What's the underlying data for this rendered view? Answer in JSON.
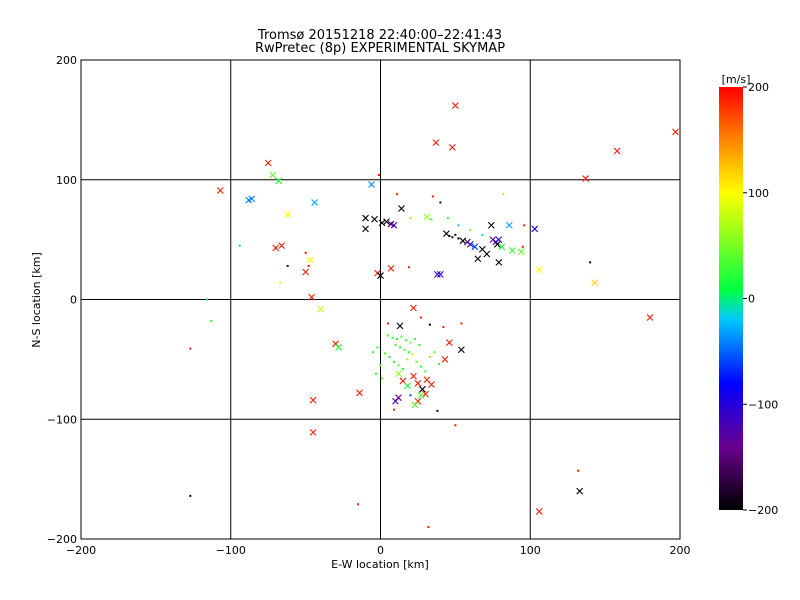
{
  "chart_data": {
    "type": "scatter",
    "title": "Tromsø 20151218 22:40:00–22:41:43",
    "subtitle": "RwPretec (8p) EXPERIMENTAL SKYMAP",
    "xlabel": "E-W location [km]",
    "ylabel": "N-S location [km]",
    "xlim": [
      -200,
      200
    ],
    "ylim": [
      -200,
      200
    ],
    "x_ticks": [
      -200,
      -100,
      0,
      100,
      200
    ],
    "y_ticks": [
      -200,
      -100,
      0,
      100,
      200
    ],
    "grid": true,
    "colorbar": {
      "label": "[m/s]",
      "range": [
        -200,
        200
      ],
      "ticks": [
        200,
        100,
        0,
        -100,
        -200
      ]
    },
    "points": [
      {
        "x": 50,
        "y": 162,
        "v": 190,
        "marker": "x"
      },
      {
        "x": 197,
        "y": 140,
        "v": 190,
        "marker": "x"
      },
      {
        "x": 37,
        "y": 131,
        "v": 190,
        "marker": "x"
      },
      {
        "x": 48,
        "y": 127,
        "v": 190,
        "marker": "x"
      },
      {
        "x": 158,
        "y": 124,
        "v": 190,
        "marker": "x"
      },
      {
        "x": -75,
        "y": 114,
        "v": 190,
        "marker": "x"
      },
      {
        "x": -72,
        "y": 104,
        "v": 40,
        "marker": "x"
      },
      {
        "x": -68,
        "y": 99,
        "v": 20,
        "marker": "x"
      },
      {
        "x": 137,
        "y": 101,
        "v": 190,
        "marker": "x"
      },
      {
        "x": -107,
        "y": 91,
        "v": 190,
        "marker": "x"
      },
      {
        "x": -86,
        "y": 84,
        "v": -40,
        "marker": "x"
      },
      {
        "x": -88,
        "y": 83,
        "v": -40,
        "marker": "x"
      },
      {
        "x": -44,
        "y": 81,
        "v": -30,
        "marker": "x"
      },
      {
        "x": -62,
        "y": 71,
        "v": 100,
        "marker": "x"
      },
      {
        "x": -6,
        "y": 96,
        "v": -40,
        "marker": "x"
      },
      {
        "x": -1,
        "y": 104,
        "v": 190,
        "marker": "dot"
      },
      {
        "x": 11,
        "y": 88,
        "v": 190,
        "marker": "dot"
      },
      {
        "x": 35,
        "y": 86,
        "v": 190,
        "marker": "dot"
      },
      {
        "x": 82,
        "y": 88,
        "v": 120,
        "marker": "dot"
      },
      {
        "x": 40,
        "y": 81,
        "v": -180,
        "marker": "dot"
      },
      {
        "x": -10,
        "y": 68,
        "v": -200,
        "marker": "x"
      },
      {
        "x": -4,
        "y": 67,
        "v": -200,
        "marker": "x"
      },
      {
        "x": 1,
        "y": 64,
        "v": -200,
        "marker": "x"
      },
      {
        "x": 4,
        "y": 65,
        "v": -200,
        "marker": "x"
      },
      {
        "x": 7,
        "y": 63,
        "v": -160,
        "marker": "x"
      },
      {
        "x": 9,
        "y": 62,
        "v": -120,
        "marker": "x"
      },
      {
        "x": -10,
        "y": 59,
        "v": -200,
        "marker": "x"
      },
      {
        "x": 14,
        "y": 76,
        "v": -200,
        "marker": "x"
      },
      {
        "x": 31,
        "y": 69,
        "v": 60,
        "marker": "x"
      },
      {
        "x": 20,
        "y": 68,
        "v": 60,
        "marker": "dot"
      },
      {
        "x": 34,
        "y": 67,
        "v": 20,
        "marker": "dot"
      },
      {
        "x": 45,
        "y": 68,
        "v": 30,
        "marker": "dot"
      },
      {
        "x": 52,
        "y": 62,
        "v": -20,
        "marker": "dot"
      },
      {
        "x": 60,
        "y": 58,
        "v": 40,
        "marker": "dot"
      },
      {
        "x": 68,
        "y": 54,
        "v": -10,
        "marker": "dot"
      },
      {
        "x": 44,
        "y": 55,
        "v": -200,
        "marker": "x"
      },
      {
        "x": 46,
        "y": 53,
        "v": -200,
        "marker": "dot"
      },
      {
        "x": 48,
        "y": 52,
        "v": -200,
        "marker": "dot"
      },
      {
        "x": 50,
        "y": 54,
        "v": -200,
        "marker": "dot"
      },
      {
        "x": 52,
        "y": 51,
        "v": -200,
        "marker": "dot"
      },
      {
        "x": 55,
        "y": 49,
        "v": -200,
        "marker": "x"
      },
      {
        "x": 58,
        "y": 48,
        "v": -160,
        "marker": "x"
      },
      {
        "x": 60,
        "y": 46,
        "v": -100,
        "marker": "x"
      },
      {
        "x": 63,
        "y": 44,
        "v": -60,
        "marker": "x"
      },
      {
        "x": 74,
        "y": 62,
        "v": -200,
        "marker": "x"
      },
      {
        "x": 75,
        "y": 50,
        "v": -140,
        "marker": "x"
      },
      {
        "x": 77,
        "y": 48,
        "v": -120,
        "marker": "x"
      },
      {
        "x": 79,
        "y": 50,
        "v": -100,
        "marker": "x"
      },
      {
        "x": 78,
        "y": 46,
        "v": -200,
        "marker": "x"
      },
      {
        "x": 81,
        "y": 44,
        "v": 20,
        "marker": "x"
      },
      {
        "x": 86,
        "y": 62,
        "v": -30,
        "marker": "x"
      },
      {
        "x": 88,
        "y": 41,
        "v": 30,
        "marker": "x"
      },
      {
        "x": 94,
        "y": 40,
        "v": 40,
        "marker": "x"
      },
      {
        "x": 103,
        "y": 59,
        "v": -80,
        "marker": "x"
      },
      {
        "x": 68,
        "y": 42,
        "v": -200,
        "marker": "x"
      },
      {
        "x": 71,
        "y": 38,
        "v": -200,
        "marker": "x"
      },
      {
        "x": 65,
        "y": 34,
        "v": -200,
        "marker": "x"
      },
      {
        "x": 79,
        "y": 31,
        "v": -200,
        "marker": "x"
      },
      {
        "x": 95,
        "y": 44,
        "v": 190,
        "marker": "dot"
      },
      {
        "x": 96,
        "y": 62,
        "v": 190,
        "marker": "dot"
      },
      {
        "x": 140,
        "y": 31,
        "v": -200,
        "marker": "dot"
      },
      {
        "x": 106,
        "y": 25,
        "v": 100,
        "marker": "x"
      },
      {
        "x": 143,
        "y": 14,
        "v": 120,
        "marker": "x"
      },
      {
        "x": -94,
        "y": 45,
        "v": -20,
        "marker": "dot"
      },
      {
        "x": -70,
        "y": 43,
        "v": 190,
        "marker": "x"
      },
      {
        "x": -66,
        "y": 45,
        "v": 190,
        "marker": "x"
      },
      {
        "x": -50,
        "y": 39,
        "v": 190,
        "marker": "dot"
      },
      {
        "x": -47,
        "y": 33,
        "v": 100,
        "marker": "x"
      },
      {
        "x": -62,
        "y": 28,
        "v": -180,
        "marker": "dot"
      },
      {
        "x": -67,
        "y": 14,
        "v": 110,
        "marker": "dot"
      },
      {
        "x": -50,
        "y": 23,
        "v": 190,
        "marker": "x"
      },
      {
        "x": -48,
        "y": 28,
        "v": 190,
        "marker": "dot"
      },
      {
        "x": -2,
        "y": 22,
        "v": 190,
        "marker": "x"
      },
      {
        "x": 0,
        "y": 20,
        "v": -200,
        "marker": "x"
      },
      {
        "x": 7,
        "y": 26,
        "v": 190,
        "marker": "x"
      },
      {
        "x": 19,
        "y": 27,
        "v": 190,
        "marker": "dot"
      },
      {
        "x": 38,
        "y": 21,
        "v": -120,
        "marker": "x"
      },
      {
        "x": 40,
        "y": 21,
        "v": -100,
        "marker": "x"
      },
      {
        "x": -46,
        "y": 2,
        "v": 190,
        "marker": "x"
      },
      {
        "x": -40,
        "y": -8,
        "v": 80,
        "marker": "x"
      },
      {
        "x": -116,
        "y": 0,
        "v": 0,
        "marker": "dot"
      },
      {
        "x": -113,
        "y": -18,
        "v": 20,
        "marker": "dot"
      },
      {
        "x": -127,
        "y": -41,
        "v": 190,
        "marker": "dot"
      },
      {
        "x": -30,
        "y": -37,
        "v": 190,
        "marker": "x"
      },
      {
        "x": -28,
        "y": -40,
        "v": 20,
        "marker": "x"
      },
      {
        "x": -45,
        "y": -84,
        "v": 190,
        "marker": "x"
      },
      {
        "x": -45,
        "y": -111,
        "v": 190,
        "marker": "x"
      },
      {
        "x": -14,
        "y": -78,
        "v": 190,
        "marker": "x"
      },
      {
        "x": -15,
        "y": -171,
        "v": 190,
        "marker": "dot"
      },
      {
        "x": -127,
        "y": -164,
        "v": -200,
        "marker": "dot"
      },
      {
        "x": 22,
        "y": -7,
        "v": 190,
        "marker": "x"
      },
      {
        "x": 27,
        "y": -15,
        "v": 190,
        "marker": "dot"
      },
      {
        "x": 33,
        "y": -21,
        "v": -200,
        "marker": "dot"
      },
      {
        "x": 42,
        "y": -23,
        "v": 190,
        "marker": "dot"
      },
      {
        "x": 54,
        "y": -20,
        "v": 190,
        "marker": "dot"
      },
      {
        "x": 54,
        "y": -42,
        "v": -200,
        "marker": "x"
      },
      {
        "x": 46,
        "y": -36,
        "v": 190,
        "marker": "x"
      },
      {
        "x": 43,
        "y": -50,
        "v": 190,
        "marker": "x"
      },
      {
        "x": 5,
        "y": -20,
        "v": 190,
        "marker": "dot"
      },
      {
        "x": 13,
        "y": -22,
        "v": -200,
        "marker": "x"
      },
      {
        "x": 5,
        "y": -30,
        "v": 40,
        "marker": "dot"
      },
      {
        "x": 8,
        "y": -32,
        "v": 30,
        "marker": "dot"
      },
      {
        "x": 11,
        "y": -33,
        "v": 20,
        "marker": "dot"
      },
      {
        "x": 14,
        "y": -31,
        "v": 30,
        "marker": "dot"
      },
      {
        "x": 17,
        "y": -34,
        "v": 20,
        "marker": "dot"
      },
      {
        "x": 20,
        "y": -36,
        "v": 40,
        "marker": "dot"
      },
      {
        "x": 23,
        "y": -33,
        "v": 30,
        "marker": "dot"
      },
      {
        "x": 26,
        "y": -38,
        "v": 20,
        "marker": "dot"
      },
      {
        "x": 10,
        "y": -38,
        "v": 30,
        "marker": "dot"
      },
      {
        "x": 13,
        "y": -40,
        "v": 10,
        "marker": "dot"
      },
      {
        "x": 16,
        "y": -42,
        "v": 40,
        "marker": "dot"
      },
      {
        "x": 19,
        "y": -44,
        "v": 20,
        "marker": "dot"
      },
      {
        "x": 3,
        "y": -45,
        "v": 30,
        "marker": "dot"
      },
      {
        "x": 6,
        "y": -48,
        "v": 10,
        "marker": "dot"
      },
      {
        "x": 9,
        "y": -52,
        "v": 20,
        "marker": "dot"
      },
      {
        "x": 12,
        "y": -55,
        "v": 40,
        "marker": "dot"
      },
      {
        "x": 15,
        "y": -58,
        "v": 20,
        "marker": "dot"
      },
      {
        "x": 18,
        "y": -50,
        "v": 60,
        "marker": "dot"
      },
      {
        "x": 21,
        "y": -46,
        "v": 80,
        "marker": "dot"
      },
      {
        "x": 24,
        "y": -52,
        "v": 40,
        "marker": "dot"
      },
      {
        "x": 27,
        "y": -56,
        "v": 20,
        "marker": "dot"
      },
      {
        "x": -2,
        "y": -40,
        "v": 20,
        "marker": "dot"
      },
      {
        "x": -5,
        "y": -44,
        "v": 30,
        "marker": "dot"
      },
      {
        "x": 0,
        "y": -55,
        "v": 40,
        "marker": "dot"
      },
      {
        "x": -3,
        "y": -62,
        "v": 20,
        "marker": "dot"
      },
      {
        "x": 1,
        "y": -66,
        "v": 40,
        "marker": "dot"
      },
      {
        "x": 30,
        "y": -60,
        "v": 30,
        "marker": "dot"
      },
      {
        "x": 33,
        "y": -48,
        "v": 60,
        "marker": "dot"
      },
      {
        "x": 36,
        "y": -44,
        "v": 40,
        "marker": "dot"
      },
      {
        "x": 39,
        "y": -54,
        "v": 20,
        "marker": "dot"
      },
      {
        "x": 12,
        "y": -62,
        "v": 60,
        "marker": "x"
      },
      {
        "x": 15,
        "y": -68,
        "v": 190,
        "marker": "x"
      },
      {
        "x": 18,
        "y": -72,
        "v": 20,
        "marker": "x"
      },
      {
        "x": 22,
        "y": -64,
        "v": 190,
        "marker": "x"
      },
      {
        "x": 25,
        "y": -70,
        "v": 190,
        "marker": "x"
      },
      {
        "x": 28,
        "y": -75,
        "v": -200,
        "marker": "x"
      },
      {
        "x": 31,
        "y": -67,
        "v": 190,
        "marker": "x"
      },
      {
        "x": 34,
        "y": -71,
        "v": 190,
        "marker": "x"
      },
      {
        "x": 30,
        "y": -79,
        "v": 190,
        "marker": "x"
      },
      {
        "x": 27,
        "y": -80,
        "v": 40,
        "marker": "x"
      },
      {
        "x": 25,
        "y": -85,
        "v": 190,
        "marker": "x"
      },
      {
        "x": 23,
        "y": -88,
        "v": 40,
        "marker": "x"
      },
      {
        "x": 12,
        "y": -82,
        "v": -140,
        "marker": "x"
      },
      {
        "x": 10,
        "y": -85,
        "v": -120,
        "marker": "x"
      },
      {
        "x": 9,
        "y": -92,
        "v": 190,
        "marker": "dot"
      },
      {
        "x": 20,
        "y": -80,
        "v": -60,
        "marker": "dot"
      },
      {
        "x": 38,
        "y": -93,
        "v": -200,
        "marker": "dot"
      },
      {
        "x": 50,
        "y": -105,
        "v": 190,
        "marker": "dot"
      },
      {
        "x": 32,
        "y": -190,
        "v": 190,
        "marker": "dot"
      },
      {
        "x": 180,
        "y": -15,
        "v": 190,
        "marker": "x"
      },
      {
        "x": 132,
        "y": -143,
        "v": 190,
        "marker": "dot"
      },
      {
        "x": 133,
        "y": -160,
        "v": -200,
        "marker": "x"
      },
      {
        "x": 106,
        "y": -177,
        "v": 190,
        "marker": "x"
      }
    ]
  }
}
